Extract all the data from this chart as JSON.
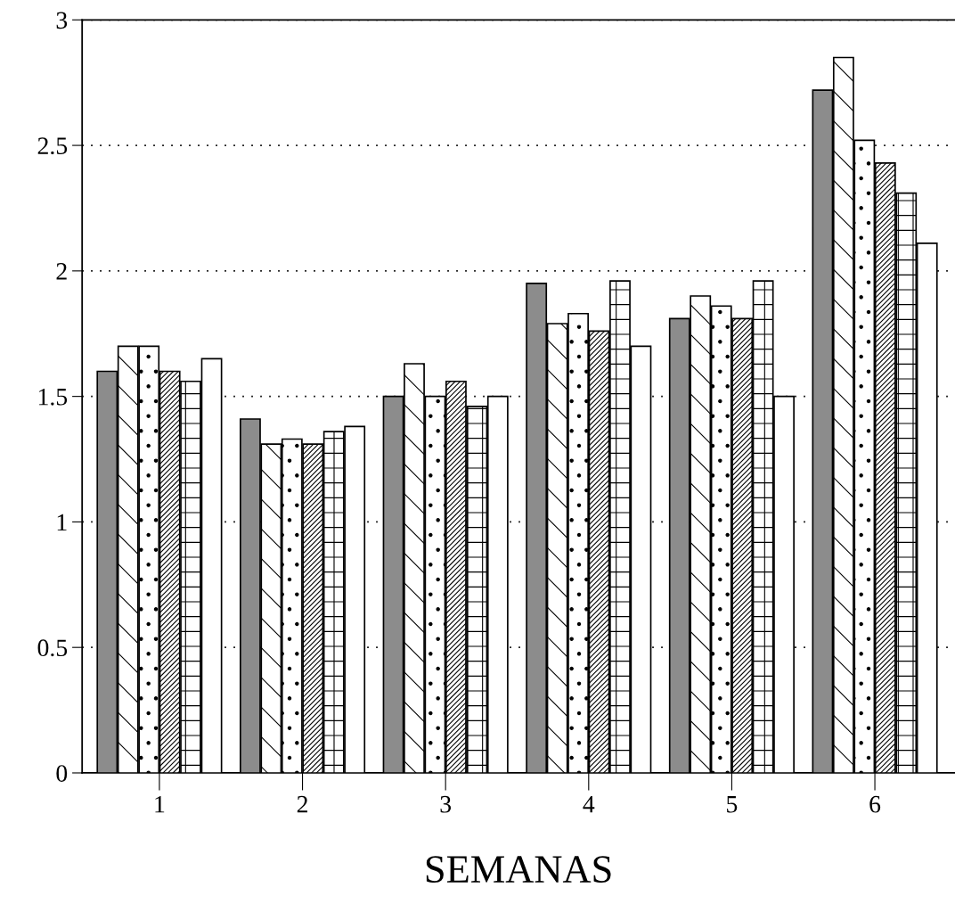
{
  "chart_data": {
    "type": "bar",
    "xlabel": "SEMANAS",
    "categories": [
      "1",
      "2",
      "3",
      "4",
      "5",
      "6"
    ],
    "series": [
      {
        "color": "#8c8c8c",
        "values": [
          1.6,
          1.41,
          1.5,
          1.95,
          1.81,
          2.72
        ]
      },
      {
        "color": "#000000",
        "values": [
          1.7,
          1.31,
          1.63,
          1.79,
          1.9,
          2.85
        ]
      },
      {
        "color": "#000000",
        "values": [
          1.7,
          1.33,
          1.5,
          1.83,
          1.86,
          2.52
        ]
      },
      {
        "color": "#000000",
        "values": [
          1.6,
          1.31,
          1.56,
          1.76,
          1.81,
          2.43
        ]
      },
      {
        "color": "#000000",
        "values": [
          1.56,
          1.36,
          1.46,
          1.96,
          1.96,
          2.31
        ]
      },
      {
        "color": "#000000",
        "values": [
          1.65,
          1.38,
          1.5,
          1.7,
          1.5,
          2.11
        ]
      }
    ],
    "ylim": [
      0,
      3
    ],
    "yticks": [
      0,
      0.5,
      1,
      1.5,
      2,
      2.5,
      3
    ],
    "grid": "y",
    "legend": false
  }
}
